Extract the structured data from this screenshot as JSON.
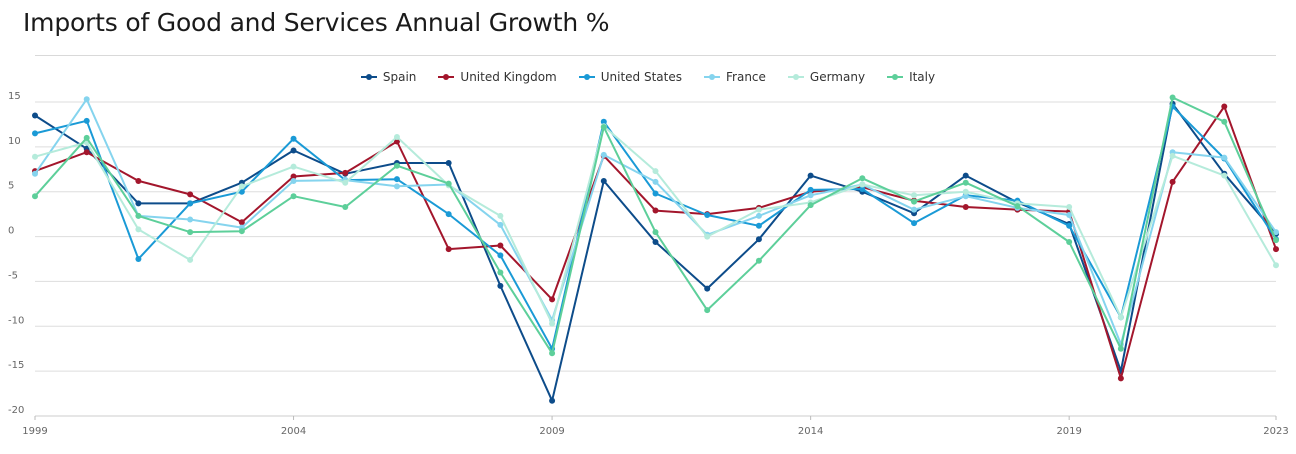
{
  "title": "Imports of Good and Services Annual Growth %",
  "chart_data": {
    "type": "line",
    "x": [
      1999,
      2000,
      2001,
      2002,
      2003,
      2004,
      2005,
      2006,
      2007,
      2008,
      2009,
      2010,
      2011,
      2012,
      2013,
      2014,
      2015,
      2016,
      2017,
      2018,
      2019,
      2020,
      2021,
      2022,
      2023
    ],
    "x_tick_labels": [
      "1999",
      "2004",
      "2009",
      "2014",
      "2019",
      "2023"
    ],
    "y_tick_labels": [
      "15",
      "10",
      "5",
      "0",
      "-5",
      "-10",
      "-15",
      "-20"
    ],
    "ylim": [
      -20,
      15
    ],
    "grid": true,
    "legend_position": "top",
    "series": [
      {
        "name": "Spain",
        "color": "#0d4c8a",
        "values": [
          13.5,
          9.8,
          3.7,
          3.7,
          6.0,
          9.6,
          7.0,
          8.2,
          8.2,
          -5.5,
          -18.3,
          6.2,
          -0.6,
          -5.8,
          -0.3,
          6.8,
          5.0,
          2.6,
          6.8,
          3.8,
          1.4,
          -15.0,
          14.8,
          7.0,
          0.3
        ]
      },
      {
        "name": "United Kingdom",
        "color": "#a3162c",
        "values": [
          7.3,
          9.4,
          6.2,
          4.7,
          1.6,
          6.7,
          7.1,
          10.6,
          -1.4,
          -1.0,
          -7.0,
          9.0,
          2.9,
          2.5,
          3.2,
          5.0,
          5.5,
          4.0,
          3.3,
          3.0,
          2.8,
          -15.8,
          6.1,
          14.5,
          -1.4
        ]
      },
      {
        "name": "United States",
        "color": "#1a9ad6",
        "values": [
          11.5,
          12.9,
          -2.5,
          3.7,
          5.0,
          10.9,
          6.3,
          6.4,
          2.5,
          -2.1,
          -12.5,
          12.8,
          4.8,
          2.4,
          1.2,
          5.2,
          5.3,
          1.5,
          4.6,
          4.0,
          1.2,
          -9.0,
          14.5,
          8.7,
          -0.3
        ]
      },
      {
        "name": "France",
        "color": "#85d4ee",
        "values": [
          7.0,
          15.3,
          2.3,
          1.9,
          1.0,
          6.2,
          6.3,
          5.6,
          5.8,
          1.3,
          -9.3,
          9.1,
          6.1,
          0.2,
          2.3,
          4.6,
          5.8,
          3.0,
          4.5,
          3.2,
          2.4,
          -12.0,
          9.4,
          8.8,
          0.5
        ]
      },
      {
        "name": "Germany",
        "color": "#b5ebdb",
        "values": [
          8.9,
          10.5,
          0.8,
          -2.6,
          5.6,
          7.8,
          6.0,
          11.1,
          5.7,
          2.3,
          -9.7,
          12.3,
          7.3,
          0.0,
          3.0,
          3.8,
          5.8,
          4.6,
          5.0,
          3.7,
          3.3,
          -9.0,
          9.0,
          6.8,
          -3.2
        ]
      },
      {
        "name": "Italy",
        "color": "#5dcf9a",
        "values": [
          4.5,
          11.0,
          2.3,
          0.5,
          0.6,
          4.5,
          3.3,
          7.9,
          5.9,
          -4.0,
          -13.0,
          12.2,
          0.5,
          -8.2,
          -2.7,
          3.5,
          6.5,
          3.9,
          6.0,
          3.4,
          -0.6,
          -12.5,
          15.5,
          12.8,
          -0.4
        ]
      }
    ]
  }
}
